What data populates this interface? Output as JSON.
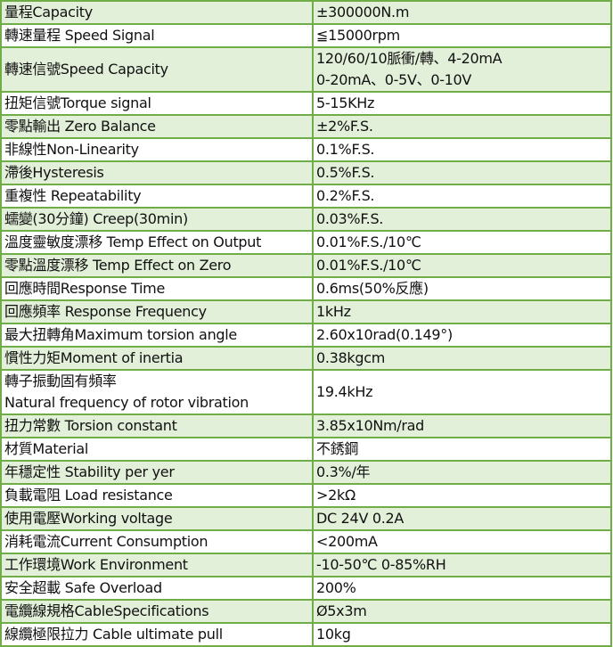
{
  "colors": {
    "row_fill": "#e2efd9",
    "border": "#70ad47"
  },
  "rows": [
    {
      "label": [
        "量程Capacity"
      ],
      "value": [
        "±300000N.m"
      ]
    },
    {
      "label": [
        "轉速量程 Speed Signal"
      ],
      "value": [
        "≦15000rpm"
      ]
    },
    {
      "label": [
        "轉速信號Speed Capacity"
      ],
      "value": [
        "120/60/10脈衝/轉、4-20mA",
        "0-20mA、0-5V、0-10V"
      ]
    },
    {
      "label": [
        "扭矩信號Torque signal"
      ],
      "value": [
        "5-15KHz"
      ]
    },
    {
      "label": [
        "零點輸出 Zero Balance"
      ],
      "value": [
        "±2%F.S."
      ]
    },
    {
      "label": [
        "非線性Non-Linearity"
      ],
      "value": [
        "0.1%F.S."
      ]
    },
    {
      "label": [
        "滯後Hysteresis"
      ],
      "value": [
        "0.5%F.S."
      ]
    },
    {
      "label": [
        "重複性 Repeatability"
      ],
      "value": [
        "0.2%F.S."
      ]
    },
    {
      "label": [
        "蠕變(30分鐘) Creep(30min)"
      ],
      "value": [
        "0.03%F.S."
      ]
    },
    {
      "label": [
        "溫度靈敏度漂移 Temp Effect on Output"
      ],
      "value": [
        "0.01%F.S./10℃"
      ]
    },
    {
      "label": [
        "零點溫度漂移 Temp Effect on Zero"
      ],
      "value": [
        "0.01%F.S./10℃"
      ]
    },
    {
      "label": [
        "回應時間Response Time"
      ],
      "value": [
        "0.6ms(50%反應)"
      ]
    },
    {
      "label": [
        "回應頻率 Response Frequency"
      ],
      "value": [
        "1kHz"
      ]
    },
    {
      "label": [
        "最大扭轉角Maximum torsion angle"
      ],
      "value": [
        "2.60x10rad(0.149°)"
      ]
    },
    {
      "label": [
        "慣性力矩Moment of inertia"
      ],
      "value": [
        "0.38kgcm"
      ]
    },
    {
      "label": [
        "轉子振動固有頻率",
        "Natural frequency of rotor vibration"
      ],
      "value": [
        "19.4kHz"
      ]
    },
    {
      "label": [
        "扭力常數 Torsion constant"
      ],
      "value": [
        "3.85x10Nm/rad"
      ]
    },
    {
      "label": [
        "材質Material"
      ],
      "value": [
        "不銹鋼"
      ]
    },
    {
      "label": [
        "年穩定性 Stability per yer"
      ],
      "value": [
        "0.3%/年"
      ]
    },
    {
      "label": [
        "負載電阻 Load resistance"
      ],
      "value": [
        ">2kΩ"
      ]
    },
    {
      "label": [
        "使用電壓Working voltage"
      ],
      "value": [
        "DC 24V 0.2A"
      ]
    },
    {
      "label": [
        "消耗電流Current Consumption"
      ],
      "value": [
        "<200mA"
      ]
    },
    {
      "label": [
        "工作環境Work Environment"
      ],
      "value": [
        "-10-50℃  0-85%RH"
      ]
    },
    {
      "label": [
        "安全超載 Safe Overload"
      ],
      "value": [
        "200%"
      ]
    },
    {
      "label": [
        "電纜線規格CableSpecifications"
      ],
      "value": [
        "Ø5x3m"
      ]
    },
    {
      "label": [
        "線纜極限拉力 Cable ultimate pull"
      ],
      "value": [
        "10kg"
      ]
    }
  ]
}
